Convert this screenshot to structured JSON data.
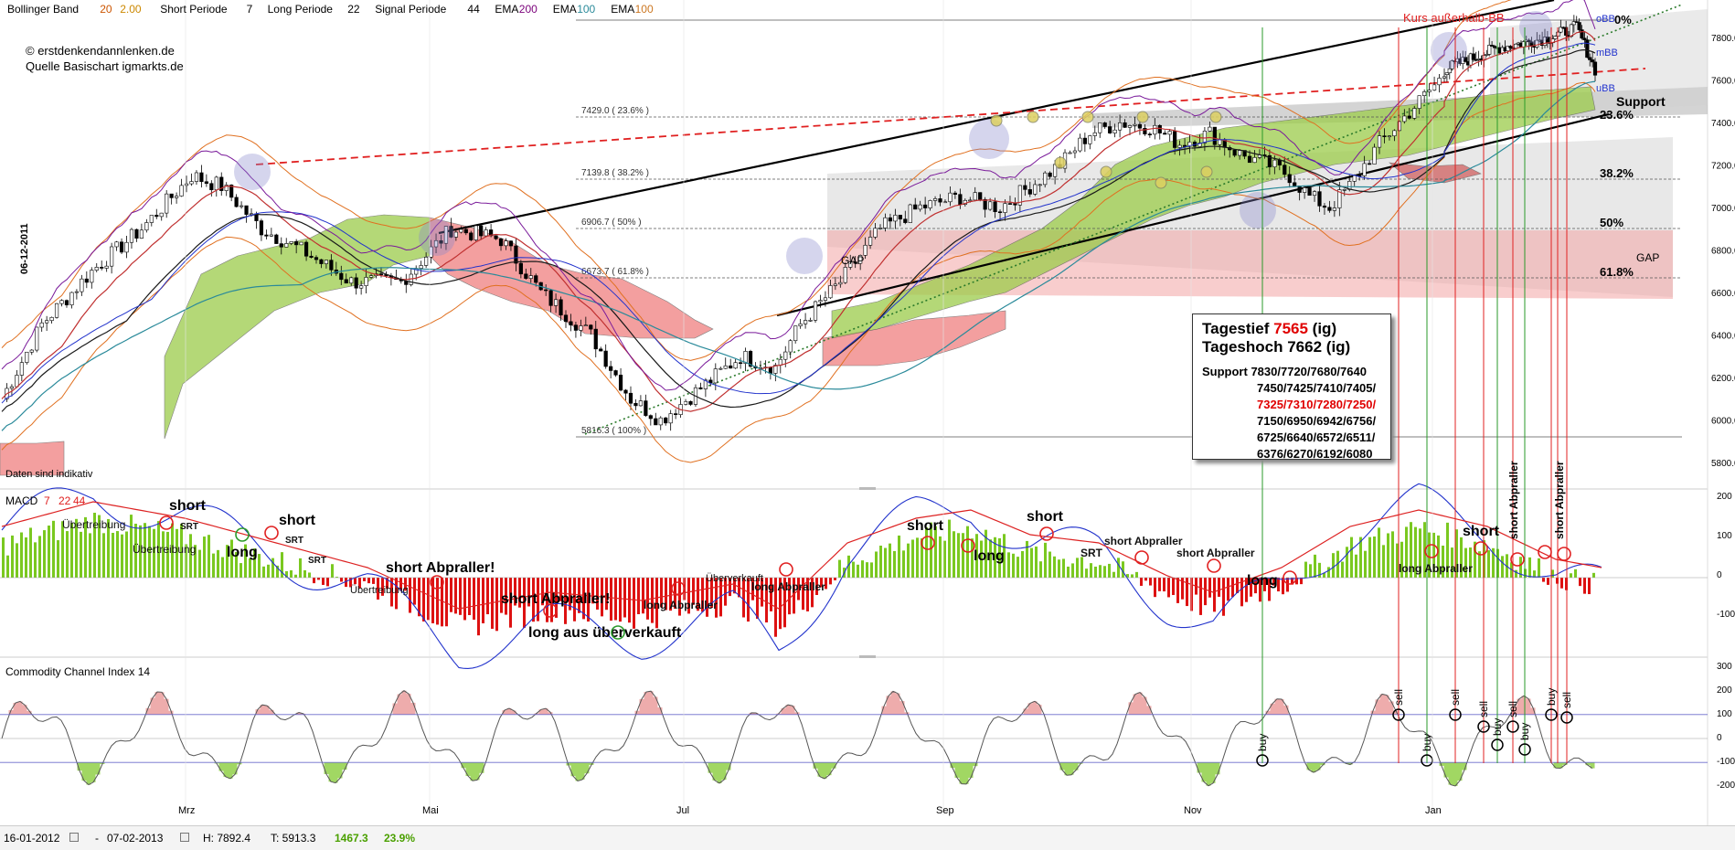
{
  "header": {
    "indicators": [
      {
        "name": "Bollinger Band",
        "p1": "20",
        "p2": "2.00",
        "c1": "#cc5500",
        "c2": "#cc8800"
      },
      {
        "name": "Short Periode",
        "p1": "7"
      },
      {
        "name": "Long Periode",
        "p1": "22"
      },
      {
        "name": "Signal Periode",
        "p1": "44"
      },
      {
        "name": "EMA",
        "p1": "200",
        "c1": "#7a007a"
      },
      {
        "name": "EMA",
        "p1": "100",
        "c1": "#2a8a9a"
      },
      {
        "name": "EMA",
        "p1": "100",
        "c1": "#cc7722"
      }
    ],
    "copyright": "© erstdenkendannlenken.de",
    "source": "Quelle Basischart igmarkts.de",
    "date_label": "06-12-2011",
    "disclaimer": "Daten sind indikativ"
  },
  "main_chart": {
    "price_ticks": [
      "7800.0",
      "7600.0",
      "7400.0",
      "7200.0",
      "7000.0",
      "6800.0",
      "6600.0",
      "6400.0",
      "6200.0",
      "6000.0",
      "5800.0"
    ],
    "fib_levels": [
      {
        "label": "7429.0 ( 23.6% )",
        "pct": "23.6%"
      },
      {
        "label": "7139.8 ( 38.2% )",
        "pct": "38.2%"
      },
      {
        "label": "6906.7 ( 50% )",
        "pct": "50%"
      },
      {
        "label": "6673.7 ( 61.8% )",
        "pct": "61.8%"
      },
      {
        "label": "5816.3 ( 100% )",
        "pct": ""
      },
      {
        "label": "",
        "pct": "0%"
      }
    ],
    "labels": {
      "kurs": "Kurs außerhalb-BB",
      "obb": "oBB",
      "mbb": "mBB",
      "ubb": "uBB",
      "support": "Support",
      "gap1": "GAP",
      "gap2": "GAP"
    }
  },
  "infobox": {
    "low_label": "Tagestief",
    "low_value": "7565",
    "low_src": "(ig)",
    "high_label": "Tageshoch",
    "high_value": "7662",
    "high_src": "(ig)",
    "support_label": "Support",
    "support_lines": [
      "7830/7720/7680/7640",
      "7450/7425/7410/7405/",
      "7150/6950/6942/6756/",
      "6725/6640/6572/6511/",
      "6376/6270/6192/6080"
    ],
    "support_red": "7325/7310/7280/7250",
    "support_red_tail": "/"
  },
  "macd": {
    "title": "MACD",
    "params": [
      "7",
      "22",
      "44"
    ],
    "ticks": [
      "200",
      "100",
      "0",
      "-100"
    ],
    "annotations": [
      "short",
      "SRT",
      "Übertreibung",
      "Übertreibung",
      "long",
      "short",
      "SRT",
      "SRT",
      "short Abpraller!",
      "Übertreibung",
      "short Abpraller!",
      "long aus überverkauft",
      "long Abpraller",
      "Überverkauft",
      "long Abpraller",
      "short",
      "long",
      "short",
      "SRT",
      "short Abpraller",
      "short Abpraller",
      "long",
      "long Abpraller",
      "short",
      "short Abpraller",
      "short Abpraller"
    ]
  },
  "cci": {
    "title": "Commodity Channel Index",
    "param": "14",
    "ticks": [
      "300",
      "200",
      "100",
      "0",
      "-100",
      "-200"
    ],
    "signals": [
      "buy",
      "sell",
      "buy",
      "sell",
      "sell",
      "buy",
      "sell",
      "buy",
      "buy",
      "sell"
    ]
  },
  "time_axis": [
    "Mrz",
    "Mai",
    "Jul",
    "Sep",
    "Nov",
    "Jan"
  ],
  "statusbar": {
    "from": "16-01-2012",
    "to": "07-02-2013",
    "high": "H: 7892.4",
    "low": "T: 5913.3",
    "diff": "1467.3",
    "pct": "23.9%"
  },
  "chart_data": [
    {
      "type": "line",
      "title": "",
      "series": [],
      "x": [
        "Mrz",
        "Mai",
        "Jul",
        "Sep",
        "Nov",
        "Jan"
      ],
      "ylim": [
        5800,
        7900
      ],
      "y_ticks": [
        7800,
        7600,
        7400,
        7200,
        7000,
        6800,
        6600,
        6400,
        6200,
        6000,
        5800
      ],
      "fibonacci": [
        {
          "level": "23.6%",
          "value": 7429.0
        },
        {
          "level": "38.2%",
          "value": 7139.8
        },
        {
          "level": "50%",
          "value": 6906.7
        },
        {
          "level": "61.8%",
          "value": 6673.7
        },
        {
          "level": "100%",
          "value": 5816.3
        }
      ],
      "range": {
        "high": 7892.4,
        "low": 5913.3,
        "diff": 1467.3,
        "pct": 23.9
      }
    },
    {
      "type": "bar",
      "title": "MACD 7 22 44",
      "ylim": [
        -200,
        200
      ],
      "y_ticks": [
        200,
        100,
        0,
        -100
      ]
    },
    {
      "type": "line",
      "title": "Commodity Channel Index 14",
      "ylim": [
        -250,
        300
      ],
      "y_ticks": [
        300,
        200,
        100,
        0,
        -100,
        -200
      ]
    }
  ]
}
